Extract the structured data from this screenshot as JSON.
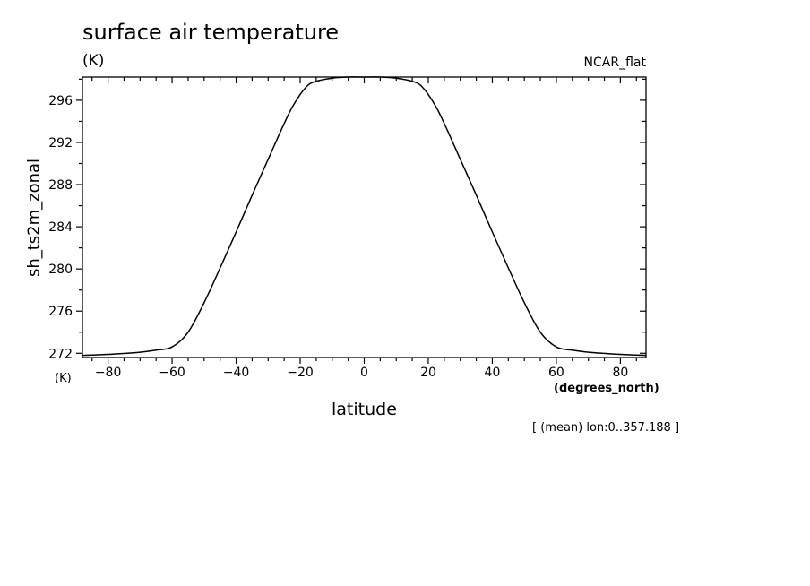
{
  "chart_data": {
    "type": "line",
    "title": "surface air temperature",
    "units": "(K)",
    "units_bottom": "(K)",
    "source_label": "NCAR_flat",
    "ylabel": "sh_ts2m_zonal",
    "xlabel": "latitude",
    "x_units": "(degrees_north)",
    "note": "[ (mean) lon:0..357.188 ]",
    "xlim": [
      -88,
      88
    ],
    "ylim": [
      271.6,
      298.2
    ],
    "x_ticks": [
      -80,
      -60,
      -40,
      -20,
      0,
      20,
      40,
      60,
      80
    ],
    "x_tick_labels": [
      "−80",
      "−60",
      "−40",
      "−20",
      "0",
      "20",
      "40",
      "60",
      "80"
    ],
    "y_ticks": [
      272,
      276,
      280,
      284,
      288,
      292,
      296
    ],
    "y_tick_labels": [
      "272",
      "276",
      "280",
      "284",
      "288",
      "292",
      "296"
    ],
    "grid": false,
    "series": [
      {
        "x": [
          -88,
          -80,
          -70,
          -65,
          -60,
          -55,
          -50,
          -45,
          -40,
          -35,
          -30,
          -25,
          -22,
          -18,
          -15,
          -10,
          -5,
          0,
          5,
          10,
          15,
          18,
          22,
          25,
          30,
          35,
          40,
          45,
          50,
          55,
          60,
          65,
          70,
          80,
          88
        ],
        "y": [
          271.8,
          271.9,
          272.1,
          272.3,
          272.6,
          274.0,
          276.8,
          280.1,
          283.5,
          287.0,
          290.4,
          293.8,
          295.6,
          297.3,
          297.8,
          298.1,
          298.2,
          298.2,
          298.2,
          298.1,
          297.8,
          297.3,
          295.6,
          293.8,
          290.4,
          287.0,
          283.5,
          280.1,
          276.8,
          274.0,
          272.6,
          272.3,
          272.1,
          271.9,
          271.8
        ]
      }
    ]
  }
}
